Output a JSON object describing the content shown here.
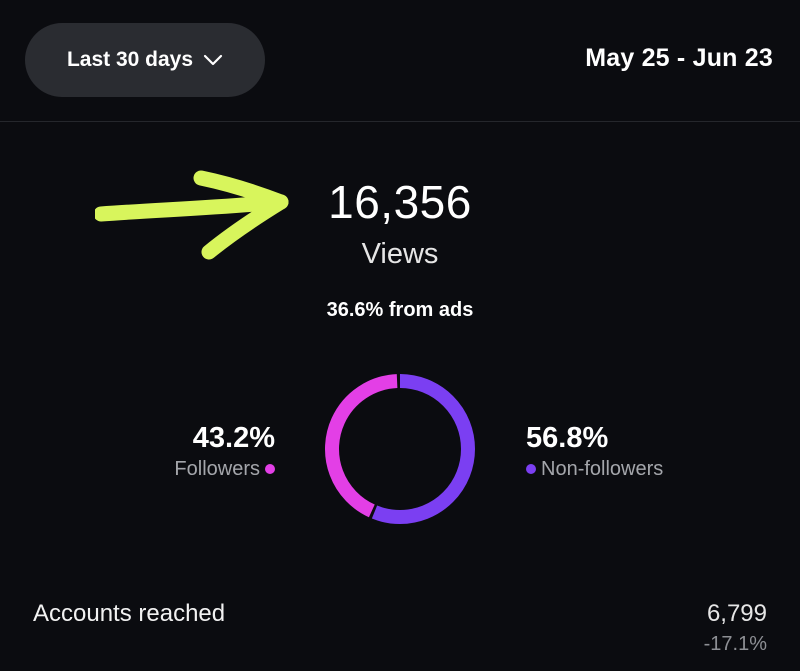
{
  "header": {
    "range_label": "Last 30 days",
    "range_icon": "chevron-down-icon",
    "date_range": "May 25 - Jun 23"
  },
  "annotation": {
    "arrow_icon": "hand-drawn-arrow-icon",
    "color": "#d8f55c"
  },
  "views": {
    "value": "16,356",
    "label": "Views",
    "ads_text": "36.6% from ads"
  },
  "audience": {
    "followers": {
      "pct": "43.2%",
      "label": "Followers",
      "fraction": 0.432,
      "color": "#e33fe6"
    },
    "non_followers": {
      "pct": "56.8%",
      "label": "Non-followers",
      "fraction": 0.568,
      "color": "#7b3ff2"
    }
  },
  "accounts_reached": {
    "label": "Accounts reached",
    "value": "6,799",
    "change": "-17.1%"
  }
}
